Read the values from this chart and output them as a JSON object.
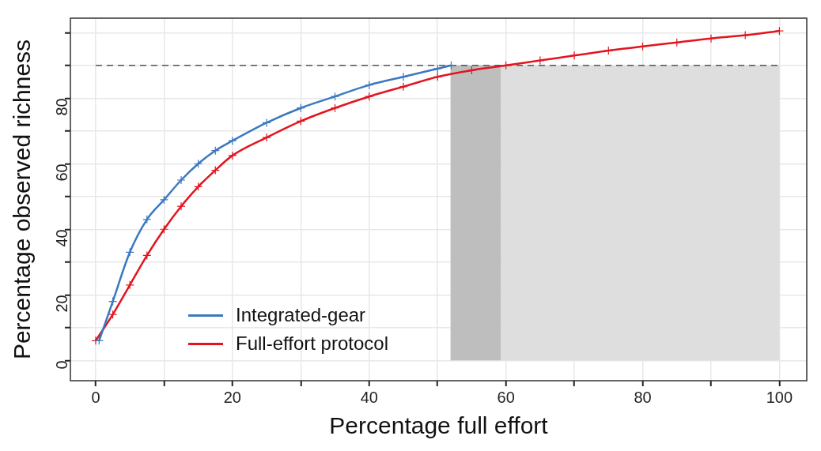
{
  "chart_data": {
    "type": "line",
    "xlabel": "Percentage full effort",
    "ylabel": "Percentage observed richness",
    "xlim": [
      -3.7,
      104
    ],
    "ylim": [
      -6.2,
      104.4
    ],
    "xticks": [
      0,
      {
        "value": 10,
        "label": null
      },
      20,
      {
        "value": 30,
        "label": null
      },
      40,
      {
        "value": 50,
        "label": null
      },
      60,
      {
        "value": 70,
        "label": null
      },
      80,
      {
        "value": 90,
        "label": null
      },
      100
    ],
    "yticks": [
      0,
      {
        "value": 10,
        "label": null
      },
      20,
      {
        "value": 30,
        "label": null
      },
      40,
      {
        "value": 50,
        "label": null
      },
      60,
      {
        "value": 70,
        "label": null
      },
      80,
      {
        "value": 90,
        "label": null
      },
      {
        "value": 100,
        "label": null
      }
    ],
    "grid": true,
    "legend": "bottom left",
    "marker": "cross",
    "line_style": "solid",
    "series": [
      {
        "name": "Integrated-gear",
        "color": "#3a78c0",
        "x": [
          0.5,
          2.5,
          5,
          7.5,
          10,
          12.5,
          15,
          17.5,
          20,
          25,
          30,
          35,
          40,
          45,
          50,
          52
        ],
        "values": [
          6,
          18,
          33,
          43,
          49,
          55,
          60,
          64,
          67,
          72.5,
          77,
          80.5,
          84,
          86.5,
          89,
          90
        ]
      },
      {
        "name": "Full-effort protocol",
        "color": "#e3141f",
        "x": [
          0,
          2.5,
          5,
          7.5,
          10,
          12.5,
          15,
          17.5,
          20,
          25,
          30,
          35,
          40,
          45,
          50,
          55,
          60,
          65,
          70,
          75,
          80,
          85,
          90,
          95,
          100
        ],
        "values": [
          6,
          14,
          23,
          32,
          40,
          47,
          53,
          58,
          62.5,
          68,
          73,
          77,
          80.5,
          83.5,
          86.5,
          88.5,
          90,
          91.5,
          93,
          94.5,
          95.8,
          97,
          98.2,
          99.2,
          100.5
        ]
      }
    ],
    "ref_lines": [
      {
        "axis": "y",
        "value": 90,
        "color": "#555555",
        "line_style": "dashed"
      }
    ],
    "bands": [
      {
        "axis": "x",
        "from": 51.9,
        "to": 59.3,
        "color": "#bebebe"
      },
      {
        "axis": "x",
        "from": 59.3,
        "to": 100,
        "color": "#dedede"
      }
    ]
  }
}
